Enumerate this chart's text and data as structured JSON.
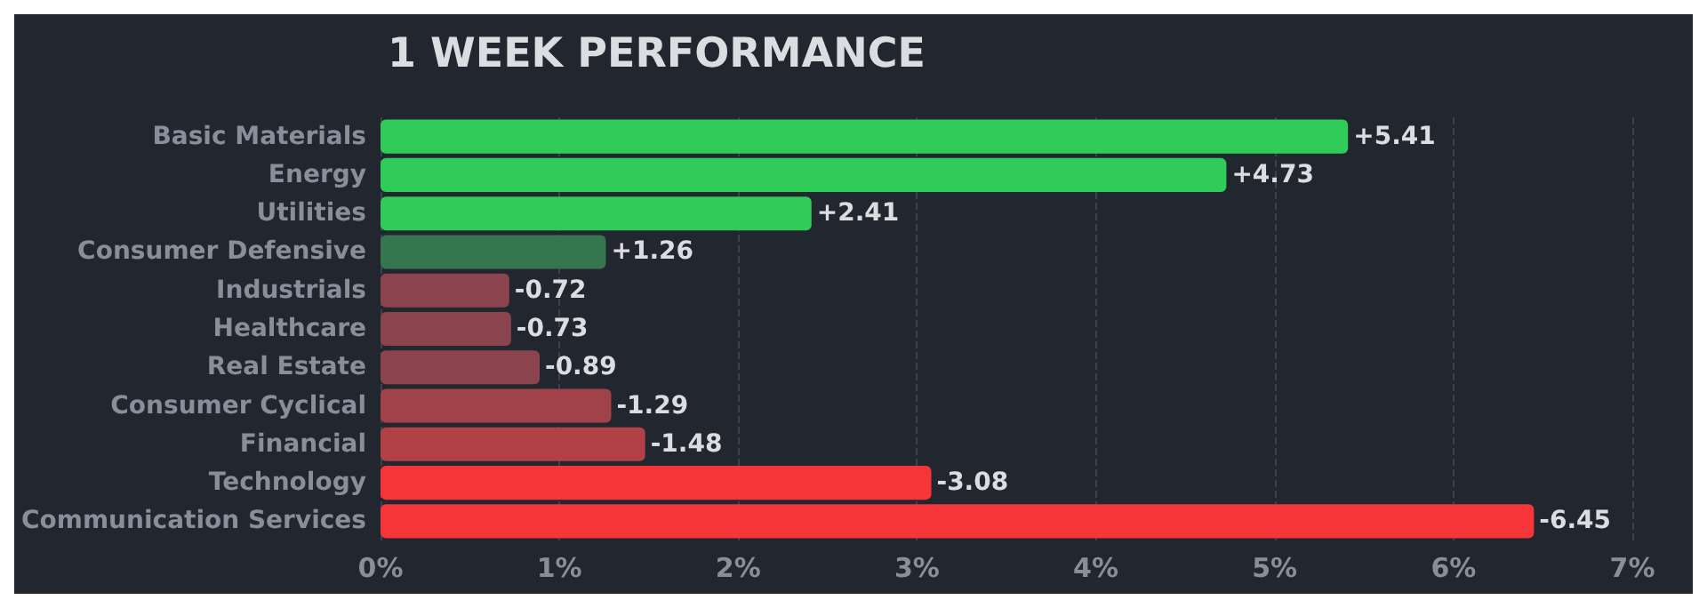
{
  "chart_data": {
    "type": "bar",
    "orientation": "horizontal",
    "title": "1 WEEK PERFORMANCE",
    "categories": [
      "Basic Materials",
      "Energy",
      "Utilities",
      "Consumer Defensive",
      "Industrials",
      "Healthcare",
      "Real Estate",
      "Consumer Cyclical",
      "Financial",
      "Technology",
      "Communication Services"
    ],
    "values": [
      5.41,
      4.73,
      2.41,
      1.26,
      -0.72,
      -0.73,
      -0.89,
      -1.29,
      -1.48,
      -3.08,
      -6.45
    ],
    "base": [
      0,
      0,
      0,
      0,
      0.72,
      0.73,
      0.89,
      1.29,
      1.48,
      3.08,
      6.45
    ],
    "value_labels": [
      "+5.41",
      "+4.73",
      "+2.41",
      "+1.26",
      "-0.72",
      "-0.73",
      "-0.89",
      "-1.29",
      "-1.48",
      "-3.08",
      "-6.45"
    ],
    "colors": [
      "#30cc5a",
      "#30cc5a",
      "#30cc5a",
      "#35764e",
      "#8b444e",
      "#8b444e",
      "#8b444e",
      "#a1424a",
      "#b14147",
      "#f63538",
      "#f63538"
    ],
    "xlim": [
      0,
      7
    ],
    "xticks": [
      {
        "value": 0,
        "label": "0%"
      },
      {
        "value": 1,
        "label": "1%"
      },
      {
        "value": 2,
        "label": "2%"
      },
      {
        "value": 3,
        "label": "3%"
      },
      {
        "value": 4,
        "label": "4%"
      },
      {
        "value": 5,
        "label": "5%"
      },
      {
        "value": 6,
        "label": "6%"
      },
      {
        "value": 7,
        "label": "7%"
      }
    ],
    "grid": "x"
  }
}
